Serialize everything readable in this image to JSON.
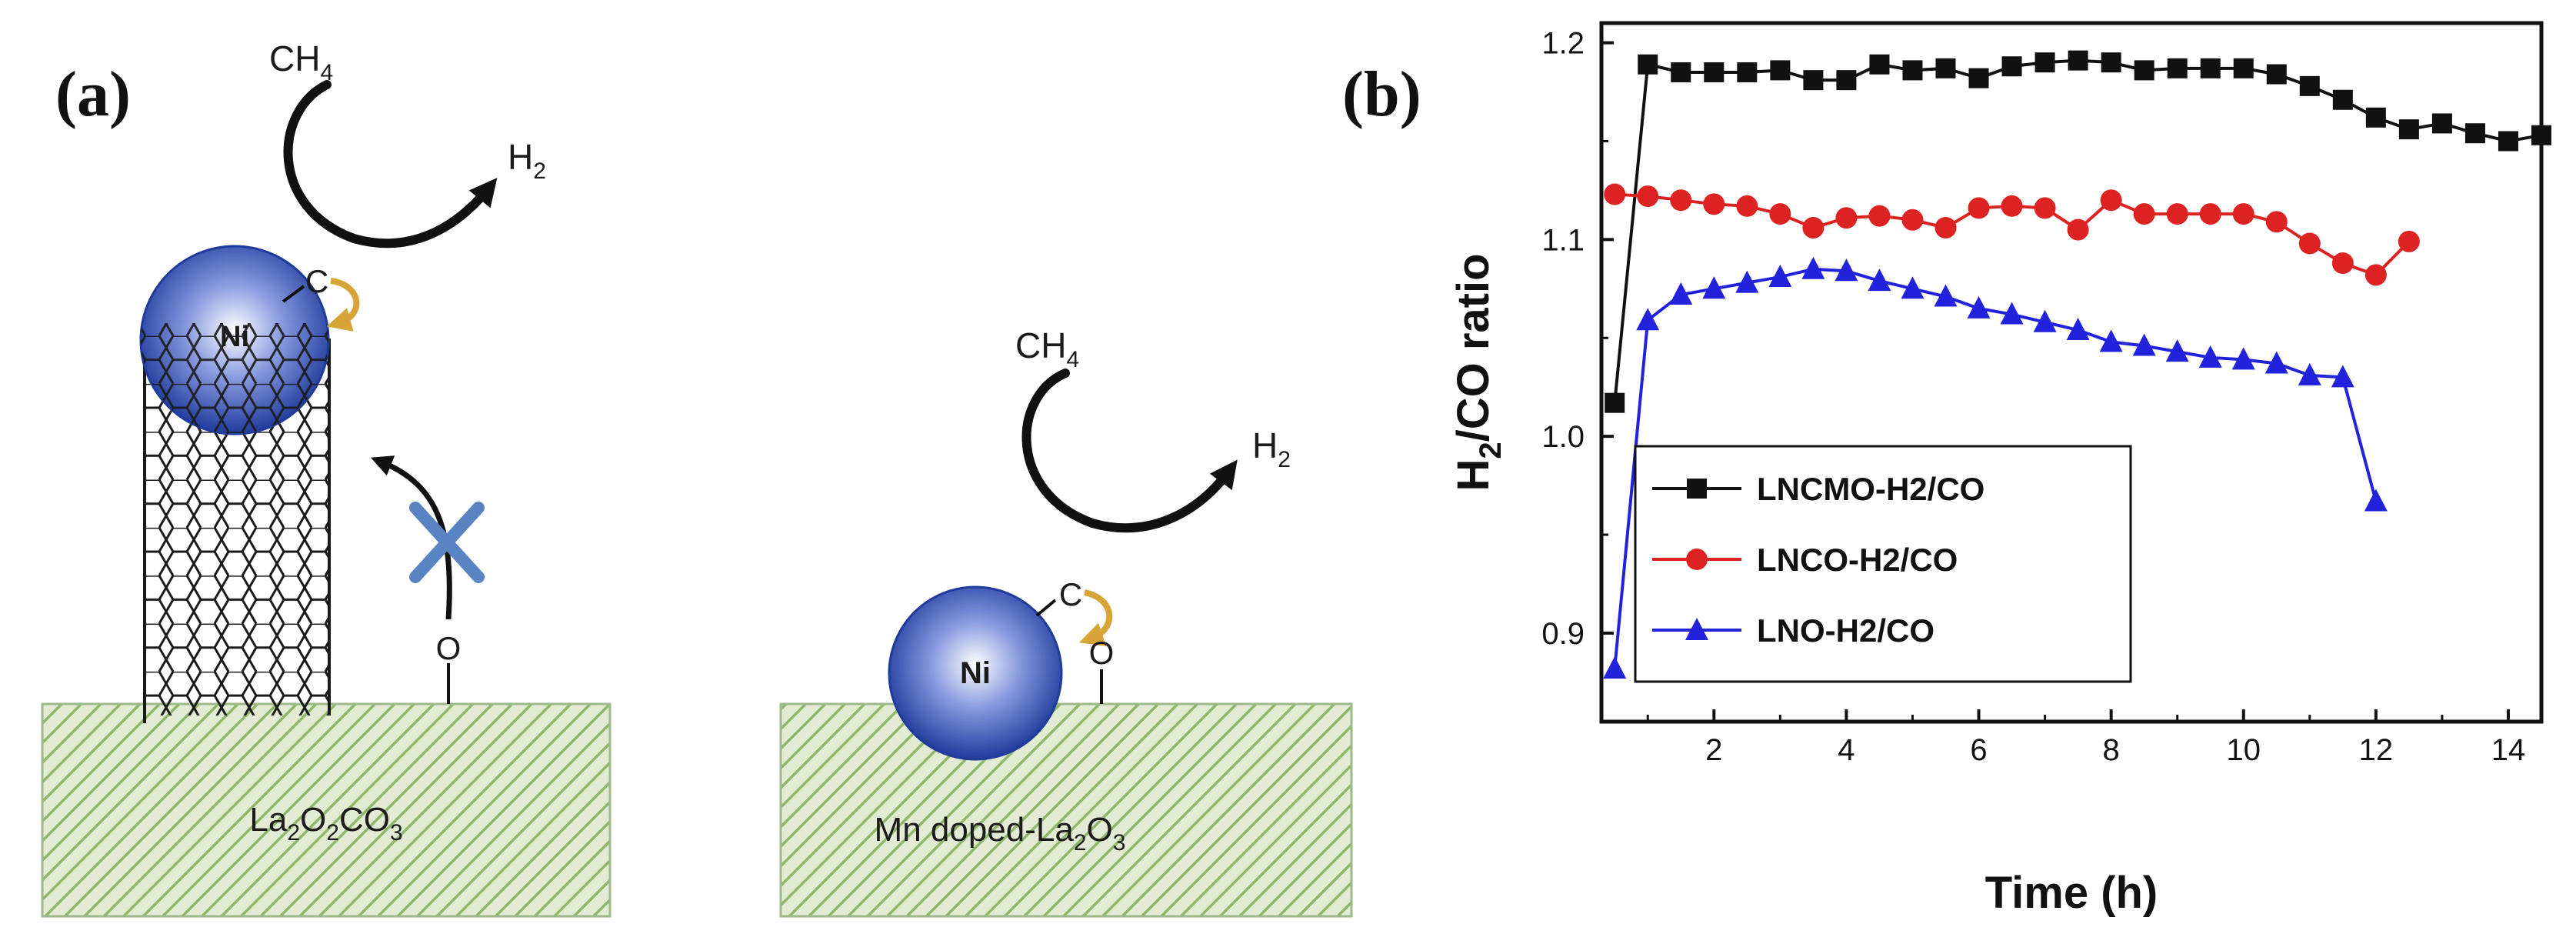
{
  "panel_a": {
    "label": "(a)",
    "left": {
      "reactant": "CH",
      "reactant_sub": "4",
      "product": "H",
      "product_sub": "2",
      "metal": "Ni",
      "carbon": "C",
      "oxygen": "O",
      "support_parts": [
        "La",
        "2",
        "O",
        "2",
        "CO",
        "3"
      ]
    },
    "right": {
      "reactant": "CH",
      "reactant_sub": "4",
      "product": "H",
      "product_sub": "2",
      "metal": "Ni",
      "carbon": "C",
      "oxygen": "O",
      "support_parts": [
        "Mn doped-La",
        "2",
        "O",
        "3"
      ]
    },
    "blocked_icon": "cross-icon",
    "colors": {
      "support_fill": "#e2ecd5",
      "support_hatch": "#8fb76a",
      "ni_core": "#ffffff",
      "ni_edge": "#1f3b9c",
      "c_arrow": "#d9a437"
    }
  },
  "panel_b": {
    "label": "(b)"
  },
  "chart_data": {
    "type": "line",
    "xlabel": "Time (h)",
    "ylabel": "H2/CO ratio",
    "xlim": [
      0.3,
      14.5
    ],
    "ylim": [
      0.855,
      1.21
    ],
    "xticks": [
      2,
      4,
      6,
      8,
      10,
      12,
      14
    ],
    "yticks": [
      0.9,
      1.0,
      1.1,
      1.2
    ],
    "ytick_labels": [
      "0.9",
      "1.0",
      "1.1",
      "1.2"
    ],
    "grid": false,
    "legend_position": "lower-left",
    "series": [
      {
        "name": "LNCMO-H2/CO",
        "color": "#111111",
        "marker": "square",
        "x": [
          0.5,
          1,
          1.5,
          2,
          2.5,
          3,
          3.5,
          4,
          4.5,
          5,
          5.5,
          6,
          6.5,
          7,
          7.5,
          8,
          8.5,
          9,
          9.5,
          10,
          10.5,
          11,
          11.5,
          12,
          12.5,
          13,
          13.5,
          14,
          14.5
        ],
        "y": [
          1.017,
          1.189,
          1.185,
          1.185,
          1.185,
          1.186,
          1.181,
          1.181,
          1.189,
          1.186,
          1.187,
          1.182,
          1.188,
          1.19,
          1.191,
          1.19,
          1.186,
          1.187,
          1.187,
          1.187,
          1.184,
          1.178,
          1.171,
          1.162,
          1.156,
          1.159,
          1.154,
          1.15,
          1.153
        ]
      },
      {
        "name": "LNCO-H2/CO",
        "color": "#dd2222",
        "marker": "circle",
        "x": [
          0.5,
          1,
          1.5,
          2,
          2.5,
          3,
          3.5,
          4,
          4.5,
          5,
          5.5,
          6,
          6.5,
          7,
          7.5,
          8,
          8.5,
          9,
          9.5,
          10,
          10.5,
          11,
          11.5,
          12,
          12.5
        ],
        "y": [
          1.123,
          1.122,
          1.12,
          1.118,
          1.117,
          1.113,
          1.106,
          1.111,
          1.112,
          1.11,
          1.106,
          1.116,
          1.117,
          1.116,
          1.105,
          1.12,
          1.113,
          1.113,
          1.113,
          1.113,
          1.109,
          1.098,
          1.088,
          1.082,
          1.099
        ]
      },
      {
        "name": "LNO-H2/CO",
        "color": "#2222dd",
        "marker": "triangle",
        "x": [
          0.5,
          1,
          1.5,
          2,
          2.5,
          3,
          3.5,
          4,
          4.5,
          5,
          5.5,
          6,
          6.5,
          7,
          7.5,
          8,
          8.5,
          9,
          9.5,
          10,
          10.5,
          11,
          11.5,
          12
        ],
        "y": [
          0.882,
          1.059,
          1.072,
          1.075,
          1.078,
          1.081,
          1.085,
          1.084,
          1.079,
          1.075,
          1.071,
          1.065,
          1.062,
          1.058,
          1.054,
          1.048,
          1.046,
          1.043,
          1.04,
          1.039,
          1.037,
          1.031,
          1.03,
          0.967
        ]
      }
    ]
  }
}
